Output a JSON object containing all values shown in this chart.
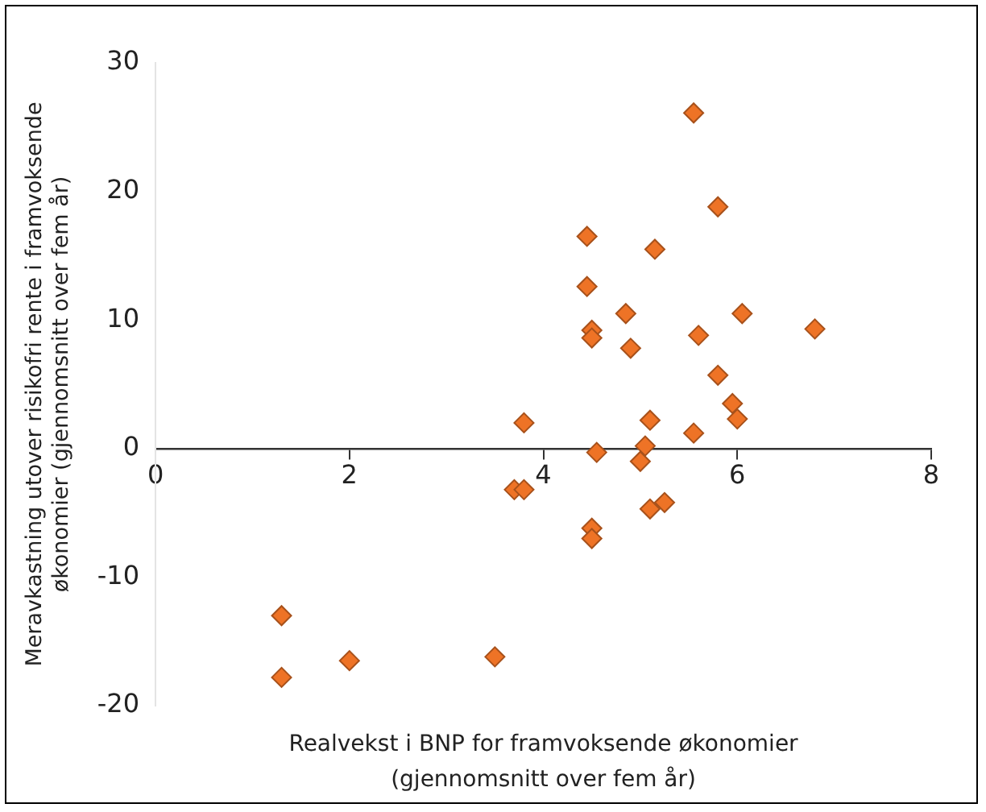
{
  "chart_data": {
    "type": "scatter",
    "xlabel": "Realvekst i BNP for framvoksende økonomier\n(gjennomsnitt over fem år)",
    "ylabel": "Meravkastning utover risikofri rente i framvoksende\nøkonomier (gjennomsnitt over fem år)",
    "xlim": [
      0,
      8
    ],
    "xticks": [
      0,
      2,
      4,
      6,
      8
    ],
    "ylim": [
      -20,
      30
    ],
    "yticks": [
      -20,
      -10,
      0,
      10,
      20,
      30
    ],
    "grid": false,
    "legend": false,
    "marker": "diamond",
    "series": [
      {
        "color": "#ee7326",
        "x": [
          1.3,
          1.3,
          2.0,
          3.5,
          3.7,
          3.8,
          3.8,
          4.45,
          4.45,
          4.5,
          4.5,
          4.5,
          4.5,
          4.55,
          4.85,
          4.9,
          5.0,
          5.05,
          5.1,
          5.1,
          5.15,
          5.25,
          5.55,
          5.55,
          5.6,
          5.8,
          5.8,
          5.95,
          6.0,
          6.05,
          6.8
        ],
        "values": [
          -13,
          -17.8,
          -16.5,
          -16.2,
          -3.2,
          -3.2,
          2,
          16.5,
          12.6,
          9.2,
          8.6,
          -6.2,
          -7,
          -0.3,
          10.5,
          7.8,
          -1,
          0.2,
          2.2,
          -4.7,
          15.5,
          -4.2,
          26.1,
          1.2,
          8.8,
          18.8,
          5.7,
          3.5,
          2.3,
          10.5,
          9.3
        ]
      }
    ]
  }
}
